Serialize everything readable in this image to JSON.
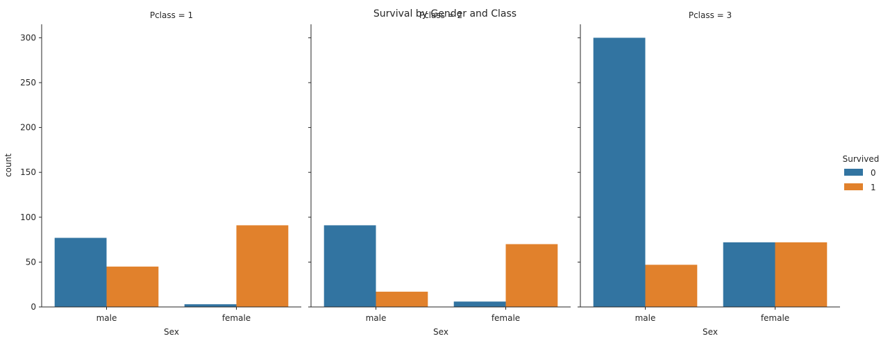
{
  "chart_data": {
    "type": "bar",
    "title": "Survival by Gender and Class",
    "ylabel": "count",
    "ylim": [
      0,
      315
    ],
    "yticks": [
      0,
      50,
      100,
      150,
      200,
      250,
      300
    ],
    "categories": [
      "male",
      "female"
    ],
    "legend": {
      "title": "Survived",
      "placement": "right",
      "entries": [
        "0",
        "1"
      ]
    },
    "colors": {
      "0": "#3274a1",
      "1": "#e1812c"
    },
    "panels": [
      {
        "title": "Pclass = 1",
        "xlabel": "Sex",
        "series": [
          {
            "name": "0",
            "values": [
              77,
              3
            ]
          },
          {
            "name": "1",
            "values": [
              45,
              91
            ]
          }
        ]
      },
      {
        "title": "Pclass = 2",
        "xlabel": "Sex",
        "series": [
          {
            "name": "0",
            "values": [
              91,
              6
            ]
          },
          {
            "name": "1",
            "values": [
              17,
              70
            ]
          }
        ]
      },
      {
        "title": "Pclass = 3",
        "xlabel": "Sex",
        "series": [
          {
            "name": "0",
            "values": [
              300,
              72
            ]
          },
          {
            "name": "1",
            "values": [
              47,
              72
            ]
          }
        ]
      }
    ]
  }
}
